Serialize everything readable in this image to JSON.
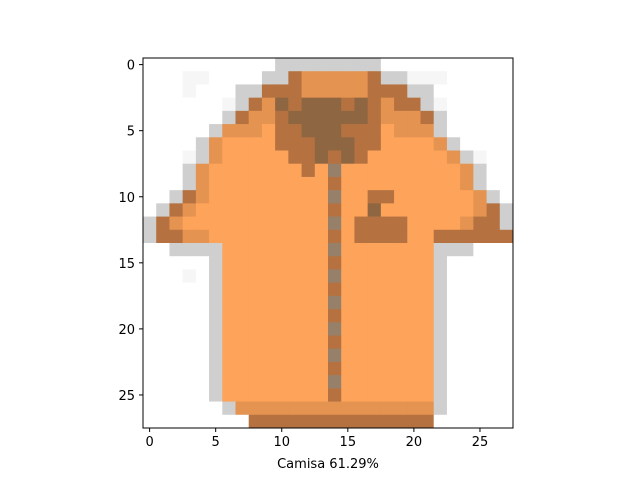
{
  "chart_data": {
    "type": "heatmap",
    "title": "",
    "xlabel": "Camisa 61.29%",
    "ylabel": "",
    "xlim": [
      -0.5,
      27.5
    ],
    "ylim": [
      27.5,
      -0.5
    ],
    "xticks": [
      0,
      5,
      10,
      15,
      20,
      25
    ],
    "yticks": [
      0,
      5,
      10,
      15,
      20,
      25
    ],
    "grid": false,
    "legend": "none",
    "colors": {
      "shirt_orange": "#fda35a",
      "collar_brown": "#8f6642",
      "edge_brown": "#b57240",
      "button_gray": "#97806a",
      "shadow_gray": "#cfcfcf",
      "background": "#ffffff"
    },
    "palette": [
      "#ffffff",
      "#f6f6f6",
      "#e4e4e4",
      "#cfcfcf",
      "#b3ab9f",
      "#97806a",
      "#8f6642",
      "#b57240",
      "#e49350",
      "#fda35a"
    ],
    "pixels": [
      "0000000000333333330000000000",
      "0001100003378888873311100000",
      "0001000337778888877733000000",
      "0000001378676667678773100000",
      "0000003788766666678887300000",
      "0000038889776667779888300000",
      "0000389999777666779999830000",
      "0001389999977676799999983100",
      "0003899999997959999999998300",
      "0003899999999979999999998300",
      "0037899999999959977999999830",
      "0378999999999979969999999873",
      "3789999999999959777799998773",
      "3778899999999979777799777777",
      "0033339999999959999999333000",
      "0000039999999979999999300000",
      "0001039999999959999999300000",
      "0000039999999979999999300000",
      "0000039999999959999999300000",
      "0000039999999979999999300000",
      "0000039999999959999999300000",
      "0000039999999979999999300000",
      "0000039999999959999999300000",
      "0000039999999979999999300000",
      "0000039999999959999999300000",
      "0000039999999979999999300000",
      "0000003888888888888888300000",
      "0000000077777777777777000000"
    ]
  }
}
